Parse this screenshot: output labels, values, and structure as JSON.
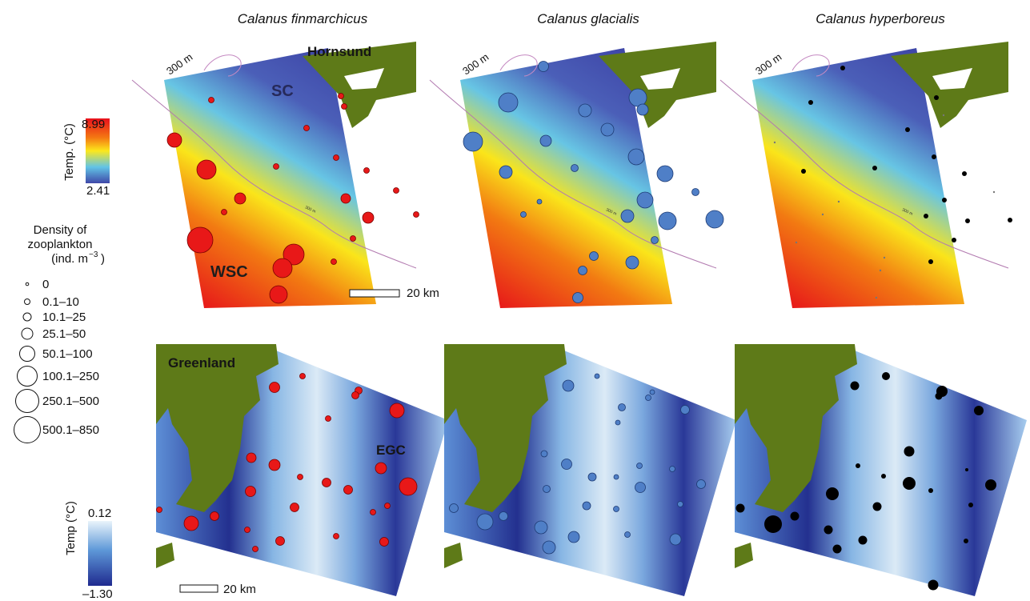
{
  "species_titles": [
    "Calanus finmarchicus",
    "Calanus glacialis",
    "Calanus hyperboreus"
  ],
  "top_legend": {
    "axis_label": "Temp. (°C)",
    "max": "8.99",
    "min": "2.41",
    "gradient_colors": [
      "#e8101c",
      "#f47a12",
      "#fce81c",
      "#62c4e6",
      "#3f48a8"
    ]
  },
  "bottom_legend": {
    "axis_label": "Temp (°C)",
    "max": "0.12",
    "min": "–1.30",
    "gradient_colors": [
      "#eaf4fb",
      "#5e98d8",
      "#1f2a8f"
    ]
  },
  "density_legend": {
    "title_lines": [
      "Density of",
      "zooplankton",
      "(ind. m"
    ],
    "title_exponent": "−3",
    "title_suffix": ")",
    "classes": [
      "0",
      "0.1–10",
      "10.1–25",
      "25.1–50",
      "50.1–100",
      "100.1–250",
      "250.1–500",
      "500.1–850"
    ]
  },
  "map_labels": {
    "hornsund": "Hornsund",
    "sc": "SC",
    "wsc": "WSC",
    "greenland": "Greenland",
    "egc": "EGC",
    "isobath": "300 m",
    "isobath_small": "300 m",
    "scalebar_top": "20 km",
    "scalebar_bottom": "20 km"
  },
  "colors": {
    "land": "#5e7a18",
    "finmarchicus": "#e81818",
    "glacialis": "#4f7fc7",
    "hyperboreus": "#000000",
    "isobath": "#b27ab0"
  }
}
